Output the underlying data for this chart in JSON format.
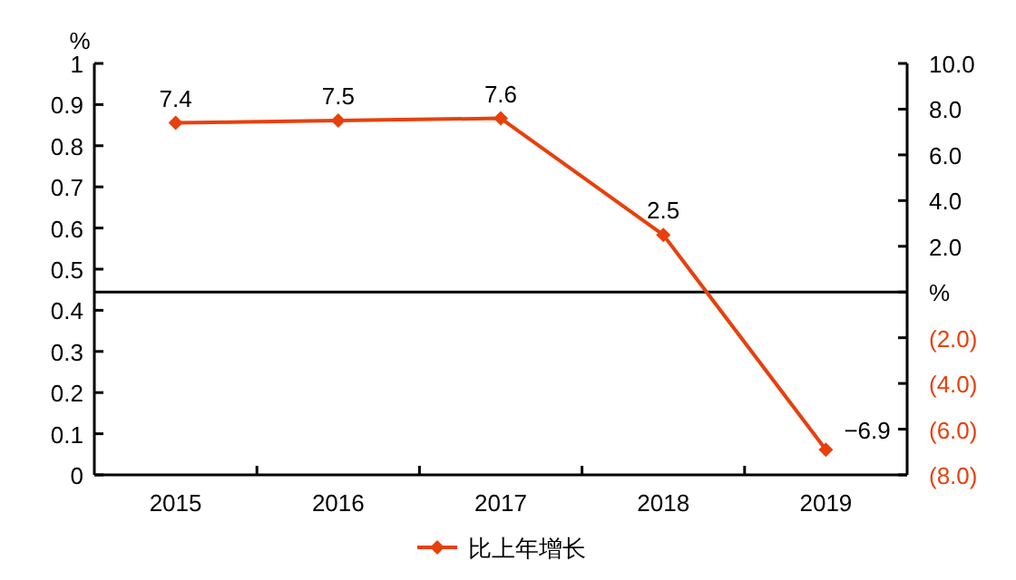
{
  "chart_data": {
    "type": "line",
    "ylabel": "%",
    "categories": [
      "2015",
      "2016",
      "2017",
      "2018",
      "2019"
    ],
    "series": [
      {
        "name": "比上年增长",
        "color": "#e8400c",
        "axis": "y2",
        "values": [
          7.4,
          7.5,
          7.6,
          2.5,
          -6.9
        ],
        "value_labels": [
          "7.4",
          "7.5",
          "7.6",
          "2.5",
          "−6.9"
        ]
      }
    ],
    "ylim": [
      0,
      1
    ],
    "yticks": [
      0,
      0.1,
      0.2,
      0.3,
      0.4,
      0.5,
      0.6,
      0.7,
      0.8,
      0.9,
      1
    ],
    "y2lim": [
      -8,
      10
    ],
    "y2ticks": [
      {
        "value": 10,
        "label": "10.0"
      },
      {
        "value": 8,
        "label": "8.0"
      },
      {
        "value": 6,
        "label": "6.0"
      },
      {
        "value": 4,
        "label": "4.0"
      },
      {
        "value": 2,
        "label": "2.0"
      },
      {
        "value": 0,
        "label": "%"
      },
      {
        "value": -2,
        "label": "(2.0)"
      },
      {
        "value": -4,
        "label": "(4.0)"
      },
      {
        "value": -6,
        "label": "(6.0)"
      },
      {
        "value": -8,
        "label": "(8.0)"
      }
    ],
    "ref_lines": [
      {
        "axis": "y2",
        "value": 0,
        "color": "#000000"
      }
    ],
    "legend": "bottom",
    "marker": "diamond",
    "line_style": "solid",
    "grid": false
  }
}
